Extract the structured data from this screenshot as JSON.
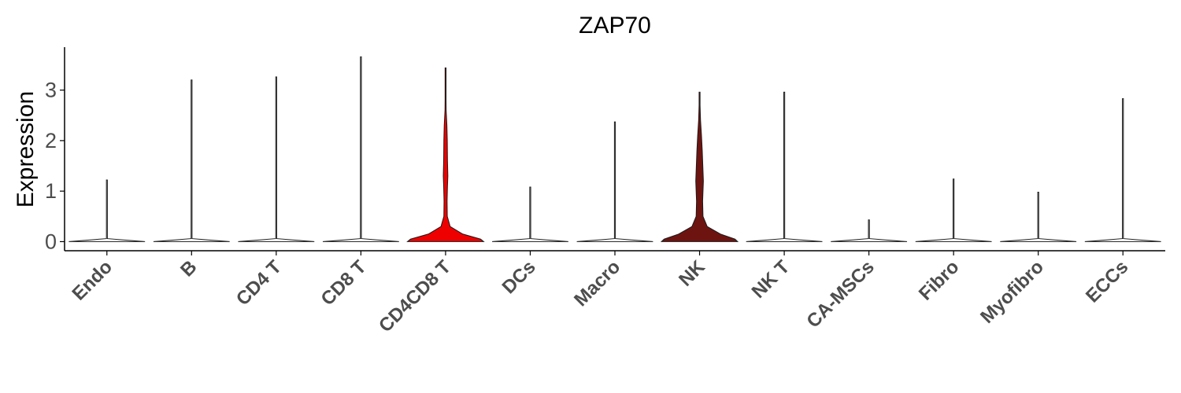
{
  "chart_data": {
    "type": "violin",
    "title": "ZAP70",
    "ylabel": "Expression",
    "xlabel": "",
    "ylim": [
      -0.18,
      3.85
    ],
    "yticks": [
      0,
      1,
      2,
      3
    ],
    "grid": false,
    "legend": "none",
    "categories": [
      "Endo",
      "B",
      "CD4 T",
      "CD8 T",
      "CD4CD8 T",
      "DCs",
      "Macro",
      "NK",
      "NK T",
      "CA-MSCs",
      "Fibro",
      "Myofibro",
      "ECCs"
    ],
    "max_values": [
      1.22,
      3.2,
      3.26,
      3.66,
      3.44,
      1.08,
      2.37,
      2.96,
      2.96,
      0.43,
      1.24,
      0.98,
      2.83
    ],
    "fill_colors": [
      "#ffffff",
      "#ffffff",
      "#ffffff",
      "#ffffff",
      "#ee0000",
      "#ffffff",
      "#ffffff",
      "#6e1410",
      "#ffffff",
      "#ffffff",
      "#ffffff",
      "#ffffff",
      "#ffffff"
    ],
    "density_profiles": {
      "CD4CD8 T": [
        [
          0,
          1.0
        ],
        [
          0.05,
          0.92
        ],
        [
          0.15,
          0.45
        ],
        [
          0.3,
          0.12
        ],
        [
          0.5,
          0.045
        ],
        [
          0.8,
          0.04
        ],
        [
          1.1,
          0.05
        ],
        [
          1.3,
          0.06
        ],
        [
          1.6,
          0.05
        ],
        [
          2.0,
          0.045
        ],
        [
          2.3,
          0.035
        ],
        [
          2.6,
          0.015
        ],
        [
          2.8,
          0.004
        ],
        [
          3.44,
          0.002
        ]
      ],
      "NK": [
        [
          0,
          1.0
        ],
        [
          0.05,
          0.93
        ],
        [
          0.15,
          0.55
        ],
        [
          0.3,
          0.2
        ],
        [
          0.5,
          0.09
        ],
        [
          0.8,
          0.08
        ],
        [
          1.0,
          0.09
        ],
        [
          1.2,
          0.1
        ],
        [
          1.5,
          0.085
        ],
        [
          1.8,
          0.07
        ],
        [
          2.1,
          0.05
        ],
        [
          2.4,
          0.025
        ],
        [
          2.7,
          0.01
        ],
        [
          2.96,
          0.003
        ]
      ]
    }
  }
}
